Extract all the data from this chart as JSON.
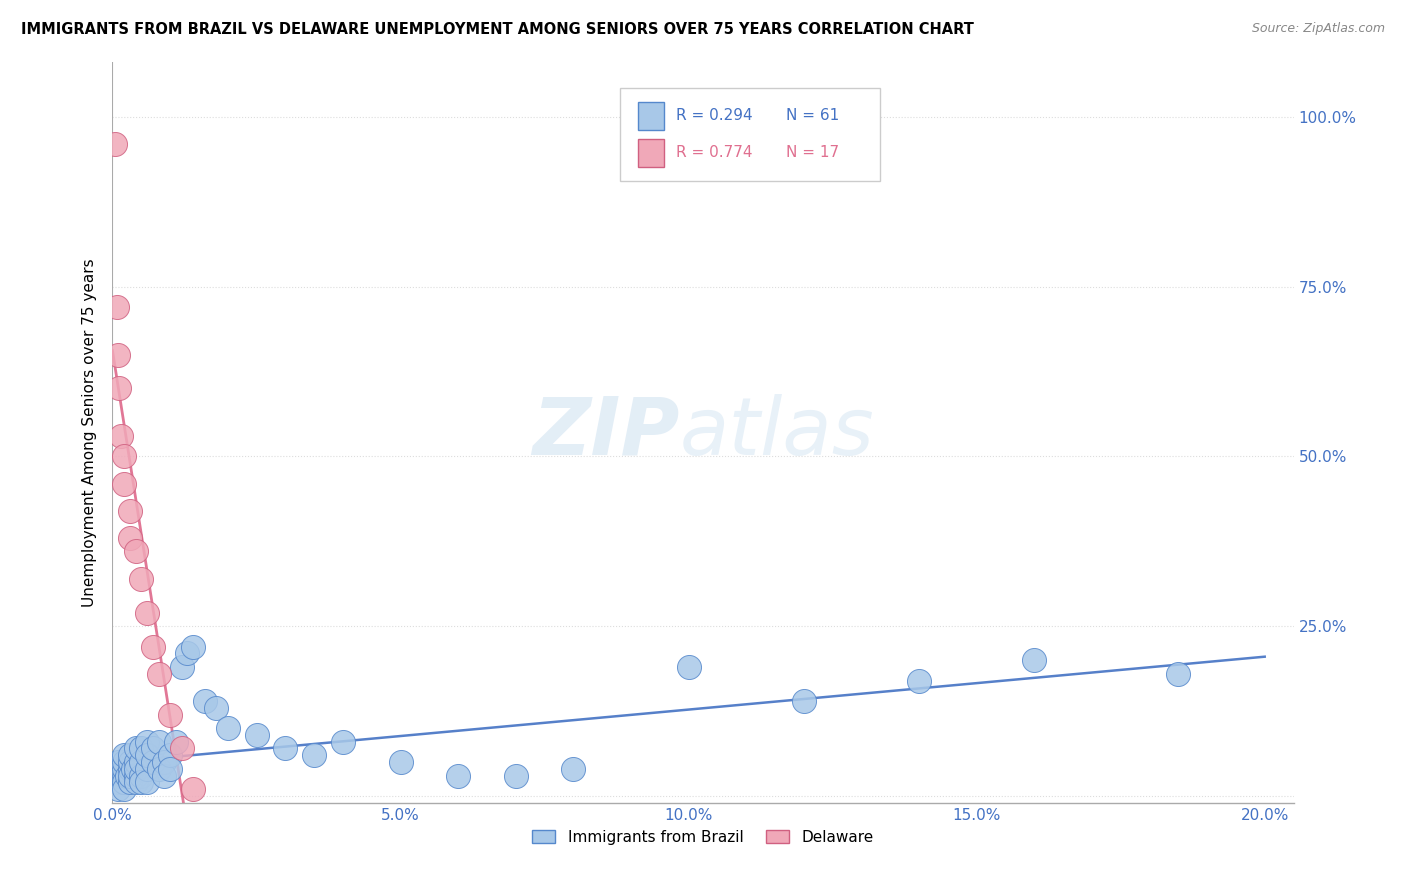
{
  "title": "IMMIGRANTS FROM BRAZIL VS DELAWARE UNEMPLOYMENT AMONG SENIORS OVER 75 YEARS CORRELATION CHART",
  "source": "Source: ZipAtlas.com",
  "ylabel": "Unemployment Among Seniors over 75 years",
  "ytick_vals": [
    0.0,
    0.25,
    0.5,
    0.75,
    1.0
  ],
  "ytick_labels": [
    "",
    "25.0%",
    "50.0%",
    "75.0%",
    "100.0%"
  ],
  "xtick_vals": [
    0.0,
    0.05,
    0.1,
    0.15,
    0.2
  ],
  "xtick_labels": [
    "0.0%",
    "5.0%",
    "10.0%",
    "15.0%",
    "20.0%"
  ],
  "xlim": [
    0.0,
    0.205
  ],
  "ylim": [
    -0.01,
    1.08
  ],
  "legend_r1": "R = 0.294",
  "legend_n1": "N = 61",
  "legend_r2": "R = 0.774",
  "legend_n2": "N = 17",
  "color_brazil_fill": "#a8c8e8",
  "color_brazil_edge": "#5588cc",
  "color_delaware_fill": "#f0a8b8",
  "color_delaware_edge": "#d06080",
  "color_brazil_line": "#4472c4",
  "color_delaware_line": "#e07090",
  "color_axis_text": "#4472c4",
  "color_grid": "#dddddd",
  "brazil_x": [
    0.0005,
    0.001,
    0.001,
    0.001,
    0.001,
    0.0015,
    0.002,
    0.002,
    0.002,
    0.002,
    0.002,
    0.002,
    0.002,
    0.0025,
    0.003,
    0.003,
    0.003,
    0.003,
    0.003,
    0.0035,
    0.004,
    0.004,
    0.004,
    0.004,
    0.004,
    0.005,
    0.005,
    0.005,
    0.005,
    0.006,
    0.006,
    0.006,
    0.006,
    0.007,
    0.007,
    0.008,
    0.008,
    0.009,
    0.009,
    0.01,
    0.01,
    0.011,
    0.012,
    0.013,
    0.014,
    0.016,
    0.018,
    0.02,
    0.025,
    0.03,
    0.035,
    0.04,
    0.05,
    0.06,
    0.07,
    0.08,
    0.1,
    0.12,
    0.14,
    0.16,
    0.185
  ],
  "brazil_y": [
    0.03,
    0.02,
    0.04,
    0.05,
    0.01,
    0.03,
    0.02,
    0.03,
    0.04,
    0.05,
    0.06,
    0.02,
    0.01,
    0.03,
    0.02,
    0.04,
    0.05,
    0.03,
    0.06,
    0.04,
    0.03,
    0.05,
    0.07,
    0.02,
    0.04,
    0.03,
    0.05,
    0.07,
    0.02,
    0.04,
    0.08,
    0.06,
    0.02,
    0.05,
    0.07,
    0.04,
    0.08,
    0.05,
    0.03,
    0.06,
    0.04,
    0.08,
    0.19,
    0.21,
    0.22,
    0.14,
    0.13,
    0.1,
    0.09,
    0.07,
    0.06,
    0.08,
    0.05,
    0.03,
    0.03,
    0.04,
    0.19,
    0.14,
    0.17,
    0.2,
    0.18
  ],
  "delaware_x": [
    0.0005,
    0.0008,
    0.001,
    0.0012,
    0.0015,
    0.002,
    0.002,
    0.003,
    0.003,
    0.004,
    0.005,
    0.006,
    0.007,
    0.008,
    0.01,
    0.012,
    0.014
  ],
  "delaware_y": [
    0.96,
    0.72,
    0.65,
    0.6,
    0.53,
    0.46,
    0.5,
    0.42,
    0.38,
    0.36,
    0.32,
    0.27,
    0.22,
    0.18,
    0.12,
    0.07,
    0.01
  ]
}
